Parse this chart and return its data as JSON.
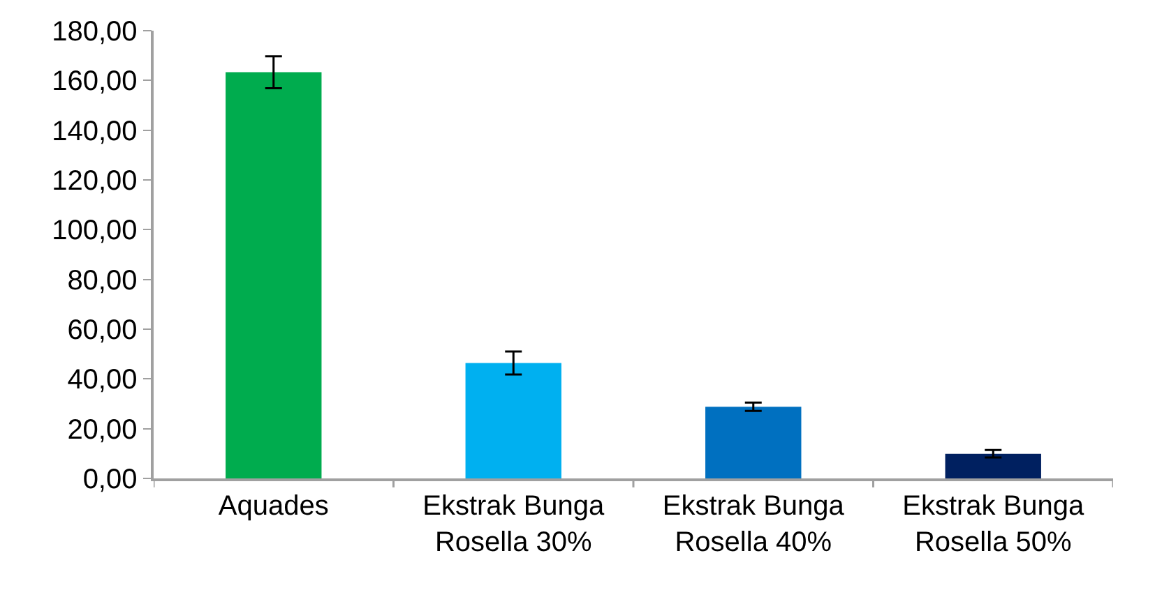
{
  "chart_data": {
    "type": "bar",
    "categories": [
      "Aquades",
      "Ekstrak Bunga\nRosella 30%",
      "Ekstrak Bunga\nRosella 40%",
      "Ekstrak Bunga\nRosella 50%"
    ],
    "values": [
      163.3,
      46.4,
      28.8,
      9.9
    ],
    "colors": [
      "#00ac4e",
      "#00b0f0",
      "#0070c0",
      "#002060"
    ],
    "errors": [
      6.4,
      4.6,
      1.7,
      1.5
    ],
    "ylim": [
      0,
      180
    ],
    "yticks": [
      {
        "value": 0,
        "label": "0,00"
      },
      {
        "value": 20,
        "label": "20,00"
      },
      {
        "value": 40,
        "label": "40,00"
      },
      {
        "value": 60,
        "label": "60,00"
      },
      {
        "value": 80,
        "label": "80,00"
      },
      {
        "value": 100,
        "label": "100,00"
      },
      {
        "value": 120,
        "label": "120,00"
      },
      {
        "value": 140,
        "label": "140,00"
      },
      {
        "value": 160,
        "label": "160,00"
      },
      {
        "value": 180,
        "label": "180,00"
      }
    ],
    "data_labels": false
  }
}
